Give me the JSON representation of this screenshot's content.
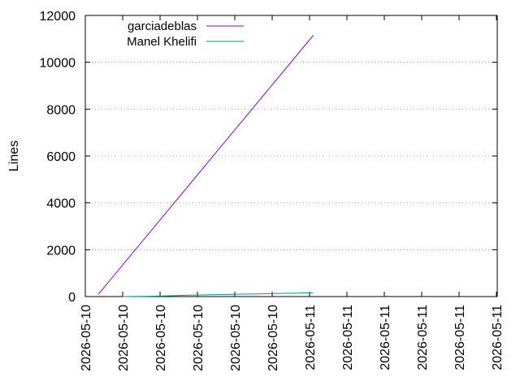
{
  "chart_data": {
    "type": "line",
    "title": "",
    "xlabel": "",
    "ylabel": "Lines",
    "ylim": [
      0,
      12000
    ],
    "yticks": [
      0,
      2000,
      4000,
      6000,
      8000,
      10000,
      12000
    ],
    "xticks": [
      "2026-05-10",
      "2026-05-10",
      "2026-05-10",
      "2026-05-10",
      "2026-05-10",
      "2026-05-10",
      "2026-05-11",
      "2026-05-11",
      "2026-05-11",
      "2026-05-11",
      "2026-05-11",
      "2026-05-11"
    ],
    "grid": "horizontal dotted",
    "legend": "top-left",
    "series": [
      {
        "name": "garciadeblas",
        "color": "#9400d3",
        "points": [
          [
            0.35,
            100
          ],
          [
            6.1,
            11150
          ]
        ]
      },
      {
        "name": "Manel Khelifi",
        "color": "#009e73",
        "points": [
          [
            1.0,
            0
          ],
          [
            1.6,
            10
          ],
          [
            2.2,
            30
          ],
          [
            2.8,
            60
          ],
          [
            3.4,
            80
          ],
          [
            4.0,
            100
          ],
          [
            4.6,
            115
          ],
          [
            5.2,
            135
          ],
          [
            5.7,
            150
          ],
          [
            6.1,
            165
          ]
        ]
      }
    ]
  }
}
